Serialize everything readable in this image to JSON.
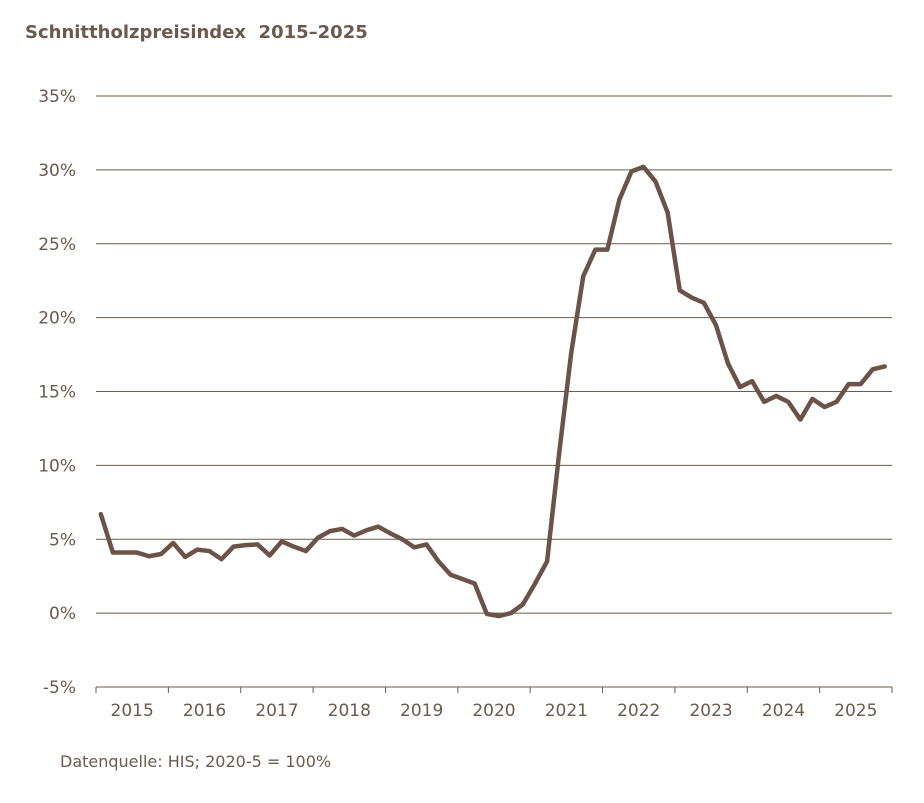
{
  "chart_data": {
    "type": "line",
    "title": "Schnittholzpreisindex  2015–2025",
    "source": "Datenquelle: HIS; 2020-5 = 100%",
    "xlabel": "",
    "ylabel": "",
    "ylim": [
      -5,
      35
    ],
    "yticks": [
      "35%",
      "30%",
      "25%",
      "20%",
      "15%",
      "10%",
      "5%",
      "0%",
      "-5%"
    ],
    "ytick_values": [
      35,
      30,
      25,
      20,
      15,
      10,
      5,
      0,
      -5
    ],
    "xticks": [
      "2015",
      "2016",
      "2017",
      "2018",
      "2019",
      "2020",
      "2021",
      "2022",
      "2023",
      "2024",
      "2025"
    ],
    "grid": true,
    "line_color": "#6b5447",
    "series": [
      {
        "x": [
          "2015-02",
          "2015-04",
          "2015-06",
          "2015-08",
          "2015-10",
          "2015-12",
          "2016-02",
          "2016-04",
          "2016-06",
          "2016-08",
          "2016-10",
          "2016-12",
          "2017-02",
          "2017-04",
          "2017-06",
          "2017-08",
          "2017-10",
          "2017-12",
          "2018-02",
          "2018-04",
          "2018-06",
          "2018-08",
          "2018-10",
          "2018-12",
          "2019-02",
          "2019-04",
          "2019-06",
          "2019-08",
          "2019-10",
          "2019-12",
          "2020-02",
          "2020-04",
          "2020-06",
          "2020-08",
          "2020-10",
          "2020-12",
          "2021-02",
          "2021-04",
          "2021-06",
          "2021-08",
          "2021-10",
          "2021-12",
          "2022-02",
          "2022-04",
          "2022-06",
          "2022-08",
          "2022-10",
          "2022-12",
          "2023-02",
          "2023-04",
          "2023-06",
          "2023-08",
          "2023-10",
          "2023-12",
          "2024-02",
          "2024-04",
          "2024-06",
          "2024-08",
          "2024-10",
          "2024-12",
          "2025-02",
          "2025-04",
          "2025-06",
          "2025-08",
          "2025-10",
          "2025-12"
        ],
        "values": [
          6.7,
          4.1,
          4.1,
          4.1,
          3.85,
          4.0,
          4.75,
          3.8,
          4.3,
          4.2,
          3.65,
          4.5,
          4.6,
          4.65,
          3.9,
          4.85,
          4.5,
          4.2,
          5.1,
          5.55,
          5.7,
          5.25,
          5.6,
          5.85,
          5.4,
          5.0,
          4.45,
          4.65,
          3.5,
          2.6,
          2.3,
          2.0,
          -0.05,
          -0.2,
          0.0,
          0.6,
          2.0,
          3.5,
          10.8,
          17.6,
          22.8,
          24.6,
          24.6,
          28.0,
          29.9,
          30.2,
          29.2,
          27.1,
          21.85,
          21.35,
          21.0,
          19.5,
          16.9,
          15.3,
          15.7,
          14.3,
          14.7,
          14.3,
          13.1,
          14.5,
          13.95,
          14.3,
          15.5,
          15.5,
          16.5,
          16.7
        ]
      }
    ]
  }
}
